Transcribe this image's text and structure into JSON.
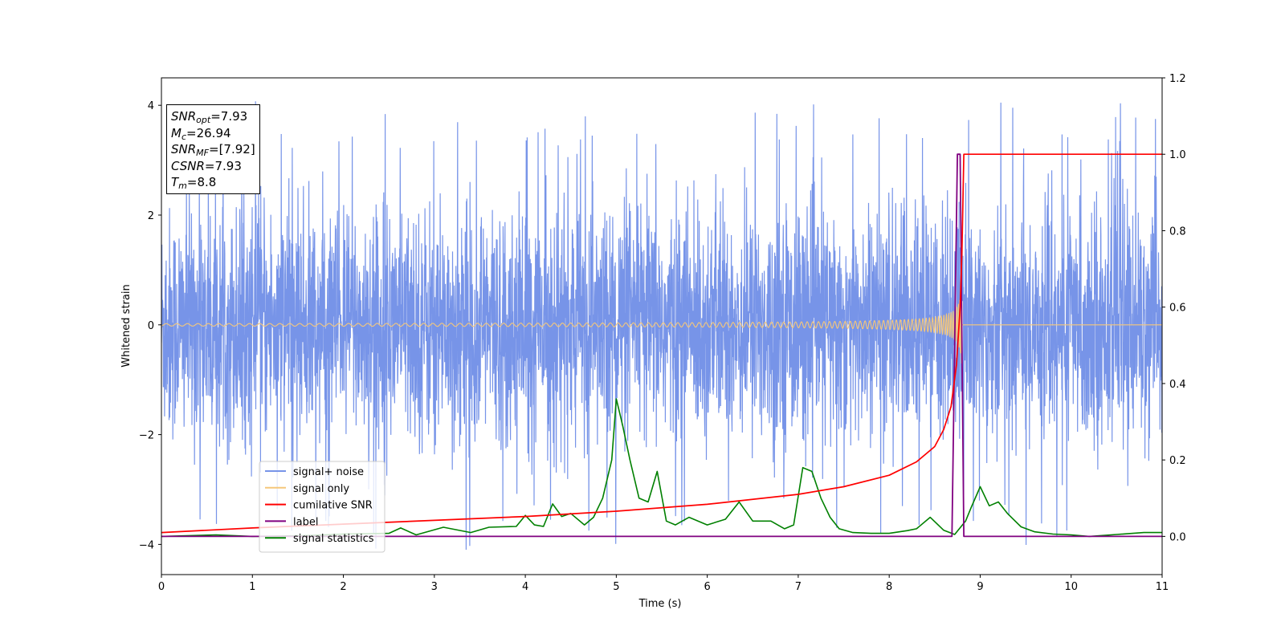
{
  "chart_data": {
    "type": "line",
    "xlabel": "Time (s)",
    "ylabel": "Whitened strain",
    "xlim": [
      0,
      11
    ],
    "ylim_left": [
      -4.55,
      4.5
    ],
    "ylim_right": [
      -0.1,
      1.2
    ],
    "x_ticks": [
      "0",
      "1",
      "2",
      "3",
      "4",
      "5",
      "6",
      "7",
      "8",
      "9",
      "10",
      "11"
    ],
    "y_ticks_left": [
      "4",
      "2",
      "0",
      "−2",
      "−4"
    ],
    "y_ticks_right": [
      "1.2",
      "1.0",
      "0.8",
      "0.6",
      "0.4",
      "0.2",
      "0.0"
    ],
    "legend_position": "lower-left",
    "series": [
      {
        "name": "signal+ noise",
        "axis": "left",
        "color": "#7794e8",
        "description": "whitened noise with std ~1 and sharp excursions to about ±4 over 0–11 s",
        "noise_std": 1.0,
        "peak_range": [
          -4.1,
          4.1
        ]
      },
      {
        "name": "signal only",
        "axis": "left",
        "color": "#f5c77a",
        "description": "chirp oscillation growing toward merger at 8.8 s, then zero",
        "chirp_merger_time": 8.8,
        "chirp_peak_amplitude": 0.85
      },
      {
        "name": "cumilative SNR",
        "axis": "right",
        "color": "#ff0000",
        "points": [
          [
            0,
            0.01
          ],
          [
            1,
            0.022
          ],
          [
            2,
            0.032
          ],
          [
            3,
            0.042
          ],
          [
            4,
            0.052
          ],
          [
            5,
            0.066
          ],
          [
            6,
            0.084
          ],
          [
            7,
            0.11
          ],
          [
            7.5,
            0.13
          ],
          [
            8,
            0.16
          ],
          [
            8.3,
            0.195
          ],
          [
            8.5,
            0.235
          ],
          [
            8.6,
            0.28
          ],
          [
            8.68,
            0.34
          ],
          [
            8.74,
            0.45
          ],
          [
            8.78,
            0.6
          ],
          [
            8.8,
            0.75
          ],
          [
            8.82,
            1.0
          ],
          [
            11,
            1.0
          ]
        ]
      },
      {
        "name": "label",
        "axis": "right",
        "color": "#800080",
        "points": [
          [
            0,
            0
          ],
          [
            8.69,
            0
          ],
          [
            8.72,
            0.5
          ],
          [
            8.75,
            1.0
          ],
          [
            8.78,
            1.0
          ],
          [
            8.82,
            0
          ],
          [
            11,
            0
          ]
        ]
      },
      {
        "name": "signal statistics",
        "axis": "right",
        "color": "#008000",
        "points": [
          [
            0,
            0
          ],
          [
            0.6,
            0.004
          ],
          [
            1.0,
            0
          ],
          [
            1.6,
            0.002
          ],
          [
            2.0,
            0.006
          ],
          [
            2.5,
            0.008
          ],
          [
            2.63,
            0.022
          ],
          [
            2.8,
            0.004
          ],
          [
            3.1,
            0.024
          ],
          [
            3.4,
            0.01
          ],
          [
            3.6,
            0.024
          ],
          [
            3.9,
            0.026
          ],
          [
            4.0,
            0.055
          ],
          [
            4.1,
            0.03
          ],
          [
            4.2,
            0.026
          ],
          [
            4.3,
            0.085
          ],
          [
            4.4,
            0.052
          ],
          [
            4.5,
            0.06
          ],
          [
            4.65,
            0.03
          ],
          [
            4.75,
            0.05
          ],
          [
            4.85,
            0.1
          ],
          [
            4.95,
            0.2
          ],
          [
            5.0,
            0.36
          ],
          [
            5.07,
            0.29
          ],
          [
            5.15,
            0.2
          ],
          [
            5.25,
            0.1
          ],
          [
            5.35,
            0.09
          ],
          [
            5.45,
            0.17
          ],
          [
            5.55,
            0.04
          ],
          [
            5.65,
            0.03
          ],
          [
            5.8,
            0.05
          ],
          [
            6.0,
            0.03
          ],
          [
            6.2,
            0.045
          ],
          [
            6.35,
            0.09
          ],
          [
            6.5,
            0.04
          ],
          [
            6.7,
            0.04
          ],
          [
            6.85,
            0.02
          ],
          [
            6.95,
            0.03
          ],
          [
            7.05,
            0.18
          ],
          [
            7.15,
            0.17
          ],
          [
            7.25,
            0.1
          ],
          [
            7.35,
            0.05
          ],
          [
            7.45,
            0.02
          ],
          [
            7.6,
            0.01
          ],
          [
            7.8,
            0.008
          ],
          [
            8.0,
            0.008
          ],
          [
            8.2,
            0.015
          ],
          [
            8.3,
            0.02
          ],
          [
            8.45,
            0.05
          ],
          [
            8.6,
            0.016
          ],
          [
            8.72,
            0.005
          ],
          [
            8.84,
            0.04
          ],
          [
            8.9,
            0.075
          ],
          [
            9.0,
            0.13
          ],
          [
            9.1,
            0.08
          ],
          [
            9.2,
            0.09
          ],
          [
            9.3,
            0.06
          ],
          [
            9.45,
            0.025
          ],
          [
            9.6,
            0.012
          ],
          [
            9.8,
            0.006
          ],
          [
            10.0,
            0.004
          ],
          [
            10.2,
            0.0
          ],
          [
            10.5,
            0.005
          ],
          [
            10.8,
            0.01
          ],
          [
            11,
            0.01
          ]
        ]
      }
    ]
  },
  "info_box": {
    "snr_opt_base": "SNR",
    "snr_opt_sub": "opt",
    "snr_opt_value": "=7.93",
    "mc_base": "M",
    "mc_sub": "c",
    "mc_value": "=26.94",
    "snr_mf_base": "SNR",
    "snr_mf_sub": "MF",
    "snr_mf_value": "=[7.92]",
    "csnr_base": "CSNR",
    "csnr_value": "=7.93",
    "tm_base": "T",
    "tm_sub": "m",
    "tm_value": "=8.8"
  }
}
